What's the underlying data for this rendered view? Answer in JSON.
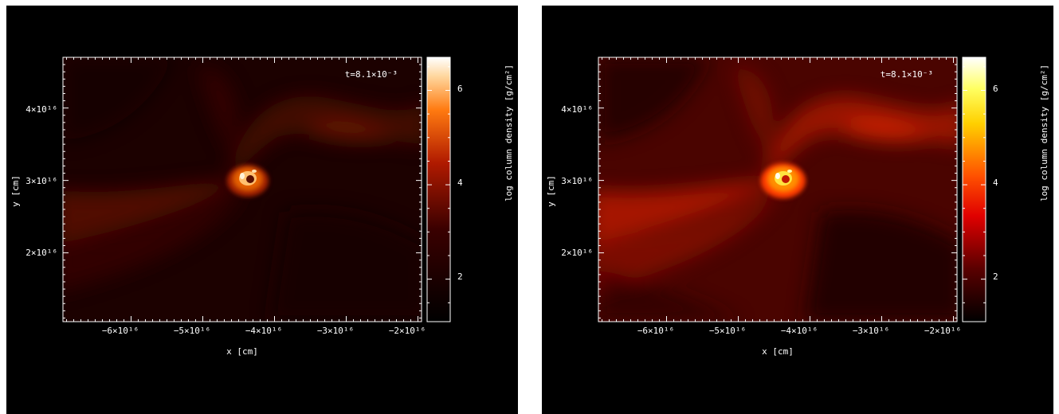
{
  "chart_data": [
    {
      "type": "heatmap",
      "colormap": "red-heat",
      "time_label": "t=8.1×10⁻³",
      "xlabel": "x [cm]",
      "ylabel": "y [cm]",
      "colorbar_label": "log column density [g/cm²]",
      "x_ticks": [
        "−6×10¹⁶",
        "−5×10¹⁶",
        "−4×10¹⁶",
        "−3×10¹⁶",
        "−2×10¹⁶"
      ],
      "y_ticks": [
        "2×10¹⁶",
        "3×10¹⁶",
        "4×10¹⁶"
      ],
      "colorbar_ticks": [
        "2",
        "4",
        "6"
      ],
      "xlim": [
        -6.95e+16,
        -1.95e+16
      ],
      "ylim": [
        1.05e+16,
        4.7e+16
      ],
      "colorbar_range": [
        1.1,
        6.7
      ],
      "hotspot": {
        "x": -4.27e+16,
        "y": 3.05e+16,
        "peak_log_density": 6.5
      }
    },
    {
      "type": "heatmap",
      "colormap": "red-yellow-white",
      "time_label": "t=8.1×10⁻³",
      "xlabel": "x [cm]",
      "ylabel": "y [cm]",
      "colorbar_label": "log column density [g/cm²]",
      "x_ticks": [
        "−6×10¹⁶",
        "−5×10¹⁶",
        "−4×10¹⁶",
        "−3×10¹⁶",
        "−2×10¹⁶"
      ],
      "y_ticks": [
        "2×10¹⁶",
        "3×10¹⁶",
        "4×10¹⁶"
      ],
      "colorbar_ticks": [
        "2",
        "4",
        "6"
      ],
      "xlim": [
        -6.95e+16,
        -1.95e+16
      ],
      "ylim": [
        1.05e+16,
        4.7e+16
      ],
      "colorbar_range": [
        1.1,
        6.7
      ],
      "hotspot": {
        "x": -4.27e+16,
        "y": 3.05e+16,
        "peak_log_density": 6.5
      }
    }
  ]
}
